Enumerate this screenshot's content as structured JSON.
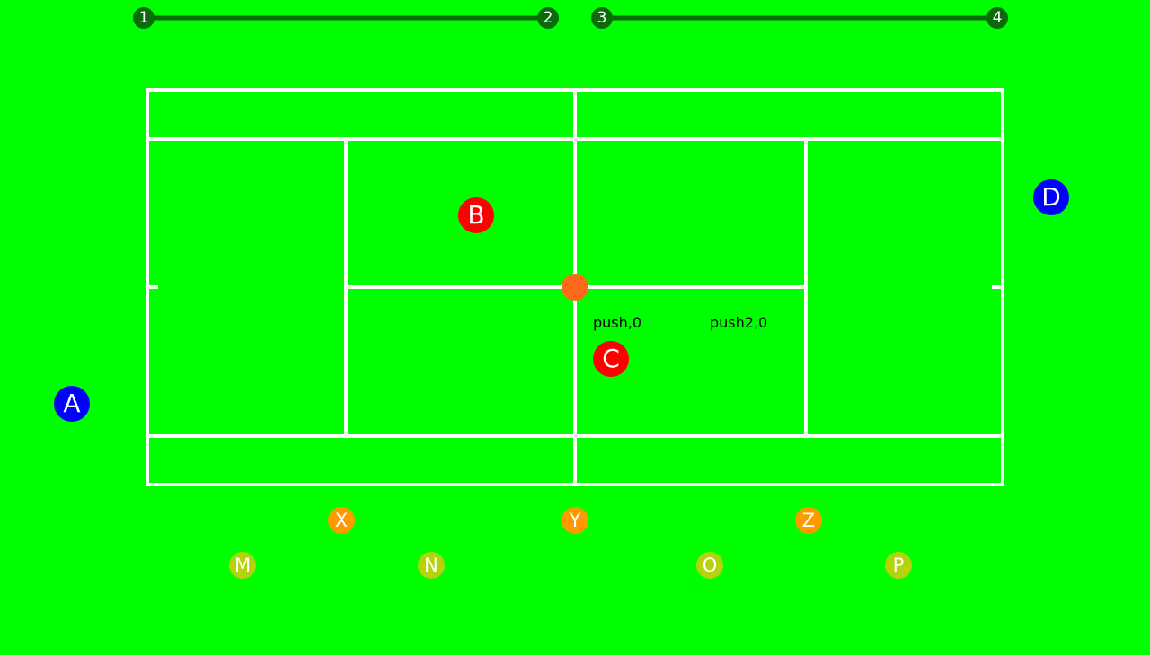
{
  "colors": {
    "field": "#00ff00",
    "court_lines": "#ffffff",
    "track": "#0b6b0b",
    "team_blue": "#0000ff",
    "team_red": "#ff0000",
    "option_orange": "#ff9900",
    "option_olive": "#b5d20a",
    "ball": "#ff6a1a"
  },
  "tracks": {
    "left": {
      "start": "1",
      "end": "2"
    },
    "right": {
      "start": "3",
      "end": "4"
    }
  },
  "players": {
    "a": "A",
    "b": "B",
    "c": "C",
    "d": "D"
  },
  "targets": {
    "x": "X",
    "y": "Y",
    "z": "Z",
    "m": "M",
    "n": "N",
    "o": "O",
    "p": "P"
  },
  "labels": {
    "push": "push,0",
    "push2": "push2,0"
  }
}
